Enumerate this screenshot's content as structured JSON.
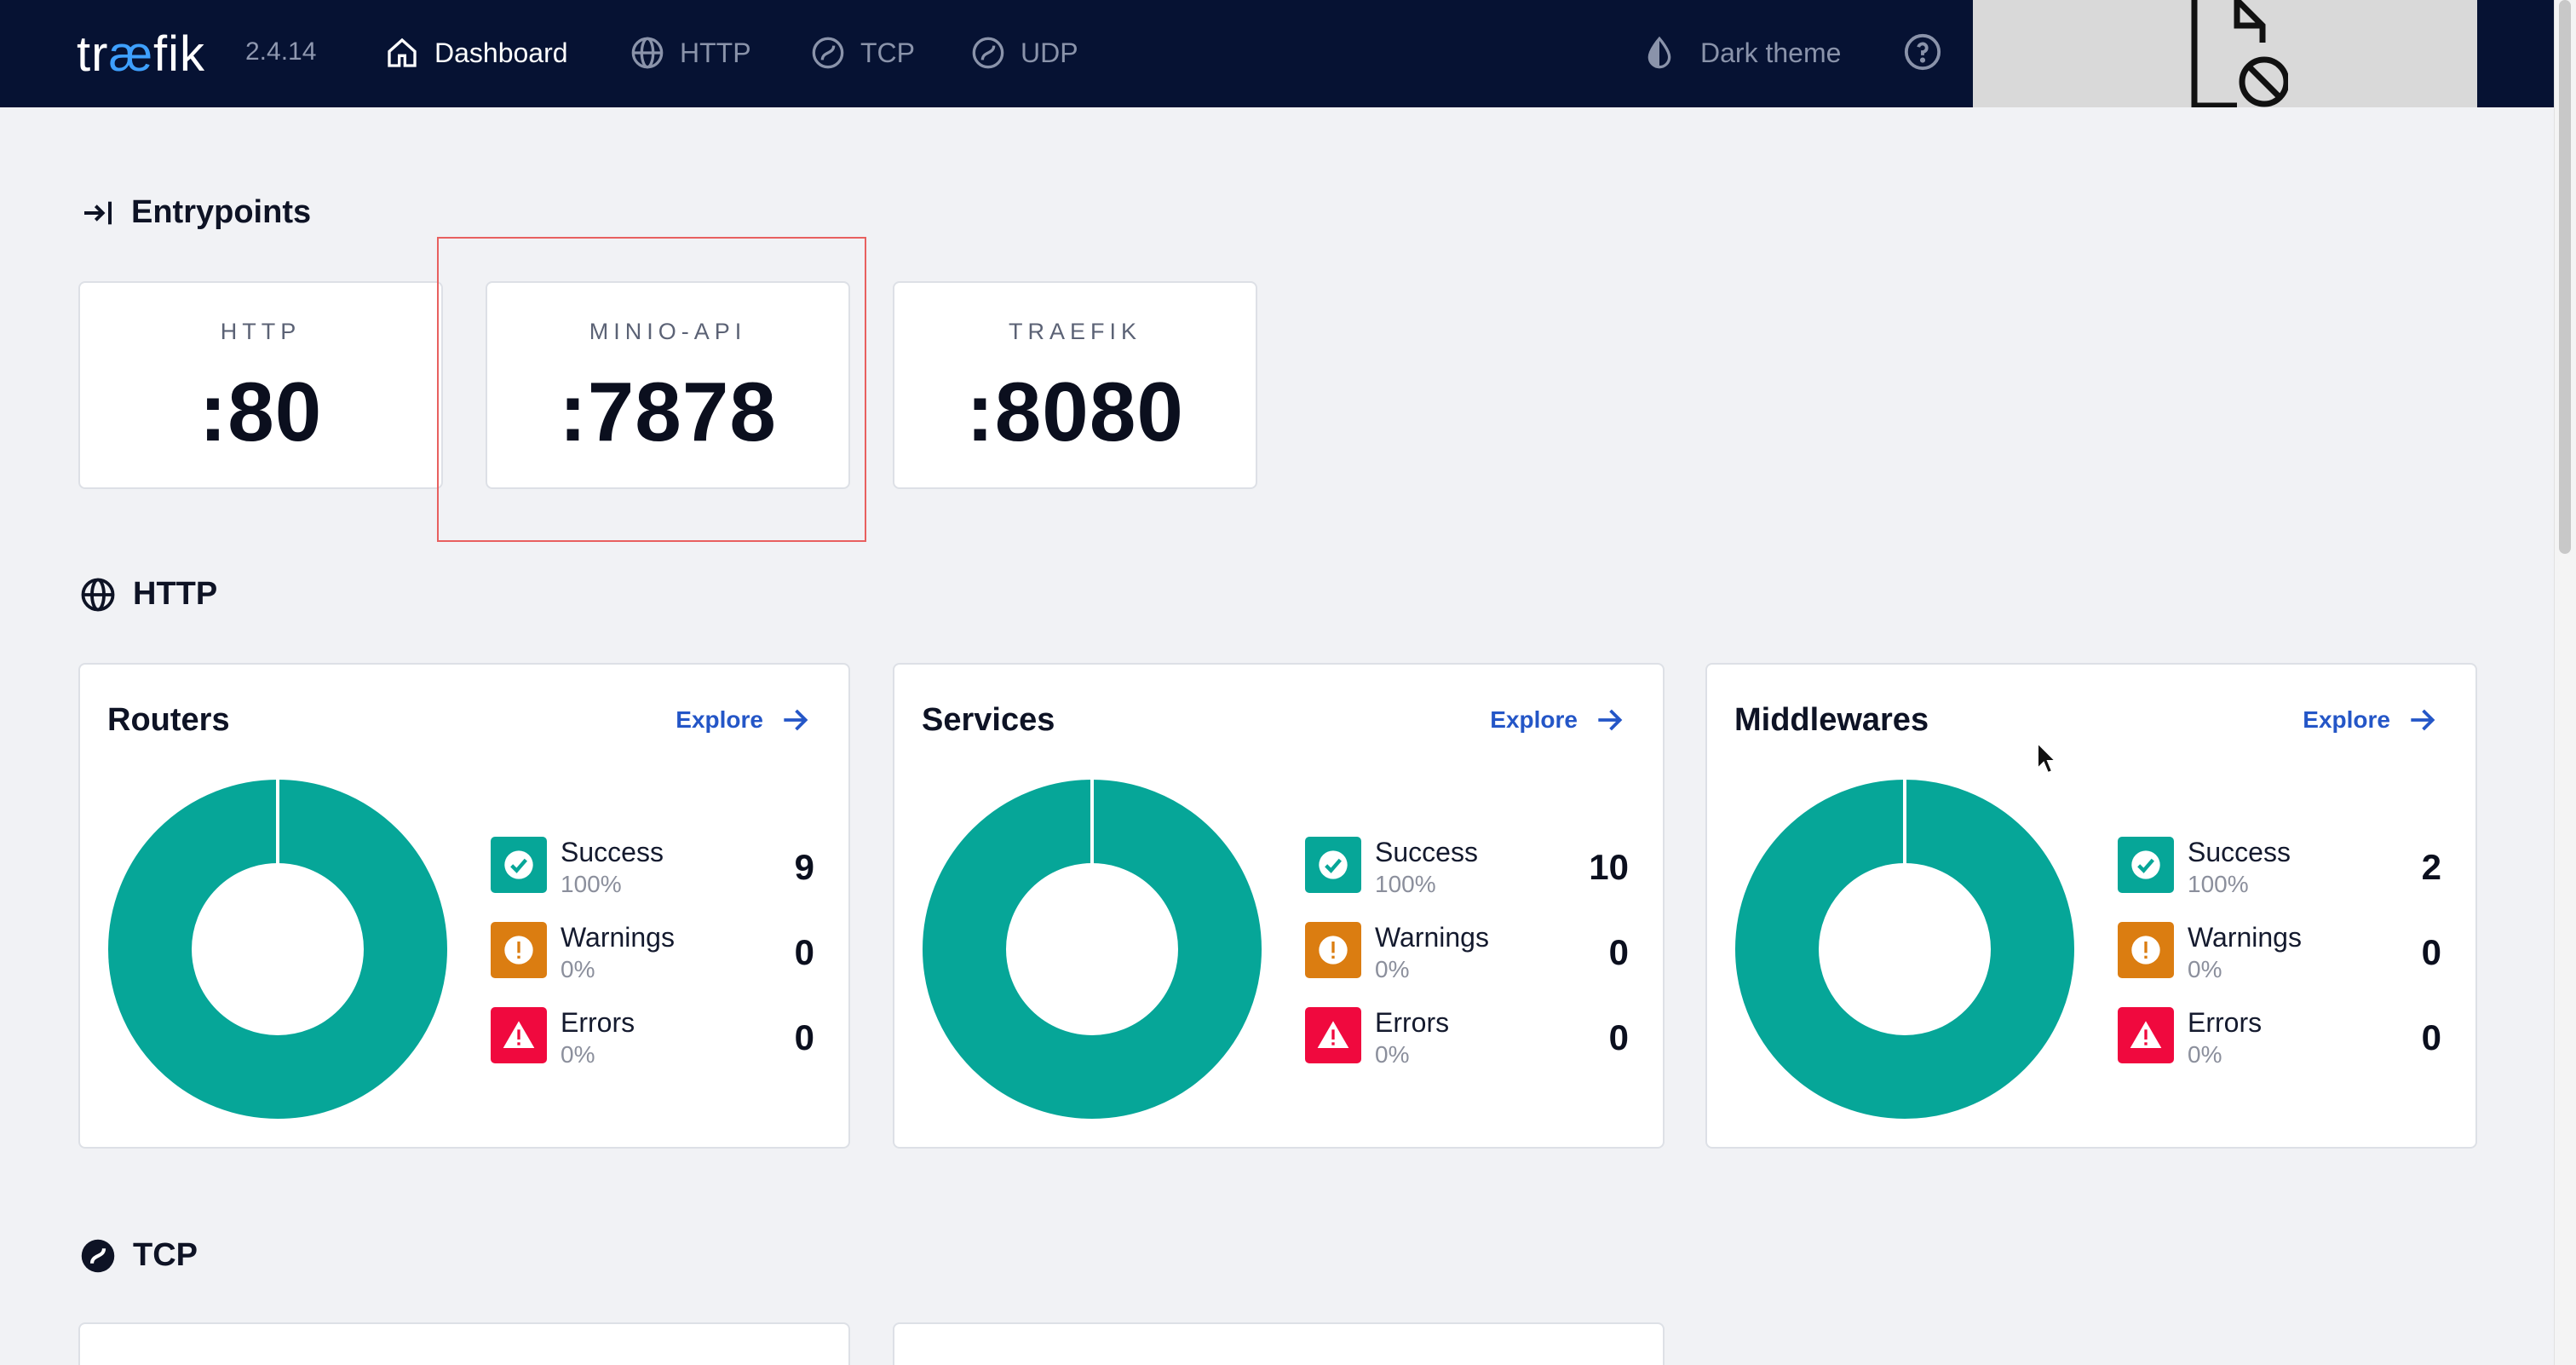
{
  "header": {
    "logo_text_pre": "tr",
    "logo_text_ae": "æ",
    "logo_text_post": "fik",
    "version": "2.4.14",
    "nav": [
      {
        "label": "Dashboard",
        "icon": "home-icon",
        "active": true
      },
      {
        "label": "HTTP",
        "icon": "globe-icon",
        "active": false
      },
      {
        "label": "TCP",
        "icon": "tcp-icon",
        "active": false
      },
      {
        "label": "UDP",
        "icon": "udp-icon",
        "active": false
      }
    ],
    "theme_label": "Dark theme",
    "help_icon": "help-circle-icon",
    "blocked_icon": "blocked-document-icon"
  },
  "entrypoints": {
    "title": "Entrypoints",
    "items": [
      {
        "name": "HTTP",
        "port": ":80"
      },
      {
        "name": "MINIO-API",
        "port": ":7878"
      },
      {
        "name": "TRAEFIK",
        "port": ":8080"
      }
    ]
  },
  "http": {
    "title": "HTTP",
    "explore_label": "Explore",
    "cards": [
      {
        "title": "Routers",
        "success": {
          "label": "Success",
          "pct": "100%",
          "count": "9"
        },
        "warnings": {
          "label": "Warnings",
          "pct": "0%",
          "count": "0"
        },
        "errors": {
          "label": "Errors",
          "pct": "0%",
          "count": "0"
        }
      },
      {
        "title": "Services",
        "success": {
          "label": "Success",
          "pct": "100%",
          "count": "10"
        },
        "warnings": {
          "label": "Warnings",
          "pct": "0%",
          "count": "0"
        },
        "errors": {
          "label": "Errors",
          "pct": "0%",
          "count": "0"
        }
      },
      {
        "title": "Middlewares",
        "success": {
          "label": "Success",
          "pct": "100%",
          "count": "2"
        },
        "warnings": {
          "label": "Warnings",
          "pct": "0%",
          "count": "0"
        },
        "errors": {
          "label": "Errors",
          "pct": "0%",
          "count": "0"
        }
      }
    ]
  },
  "tcp": {
    "title": "TCP"
  },
  "colors": {
    "header_bg": "#061233",
    "success": "#06a698",
    "warning": "#db7d11",
    "error": "#f0093e",
    "link": "#2456c7",
    "highlight": "#e8605f"
  }
}
